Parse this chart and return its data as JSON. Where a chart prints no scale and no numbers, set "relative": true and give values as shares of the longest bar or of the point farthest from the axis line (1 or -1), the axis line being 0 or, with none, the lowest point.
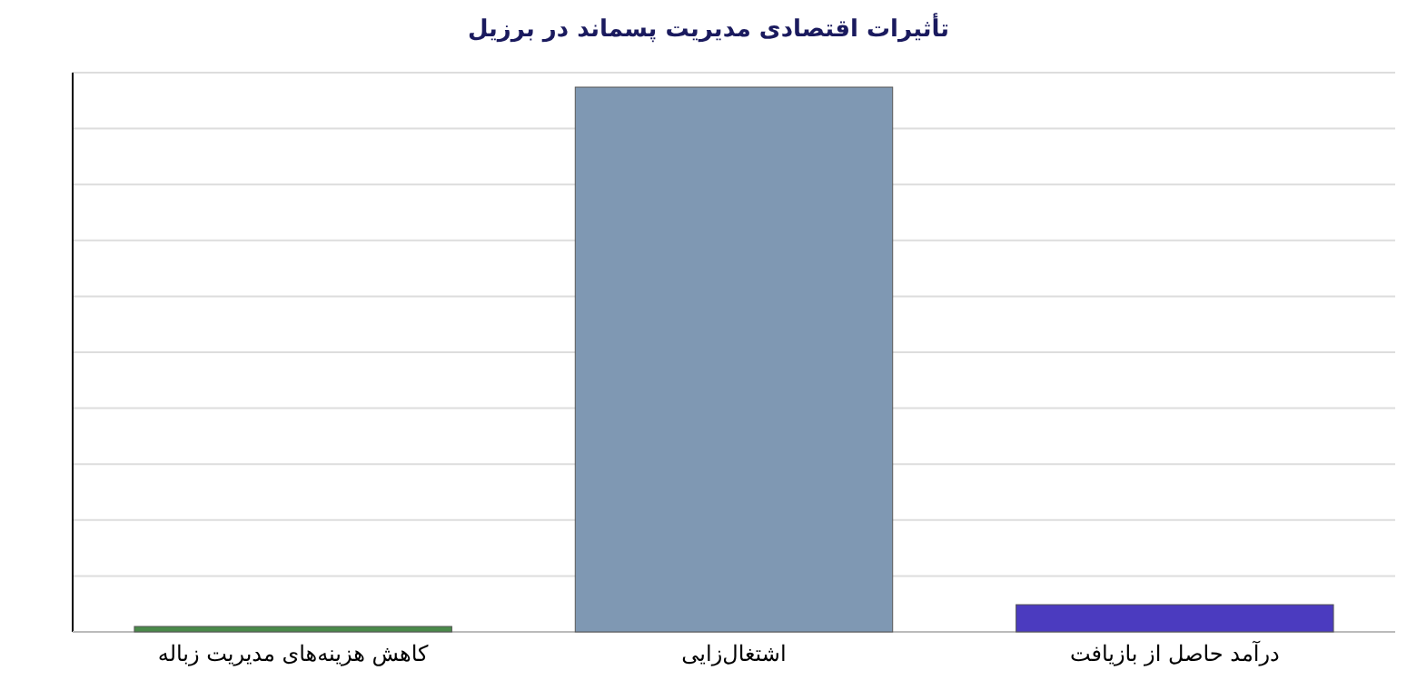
{
  "chart_data": {
    "type": "bar",
    "title": "تأثیرات اقتصادی مدیریت پسماند در برزیل",
    "categories": [
      "کاهش هزینه‌های مدیریت زباله",
      "اشتغال‌زایی",
      "درآمد حاصل از بازیافت"
    ],
    "values": [
      0.01,
      1,
      0.05
    ],
    "colors": [
      "#4a8a4a",
      "#7f98b3",
      "#4b3bbf"
    ],
    "relative": true,
    "grid": true
  }
}
